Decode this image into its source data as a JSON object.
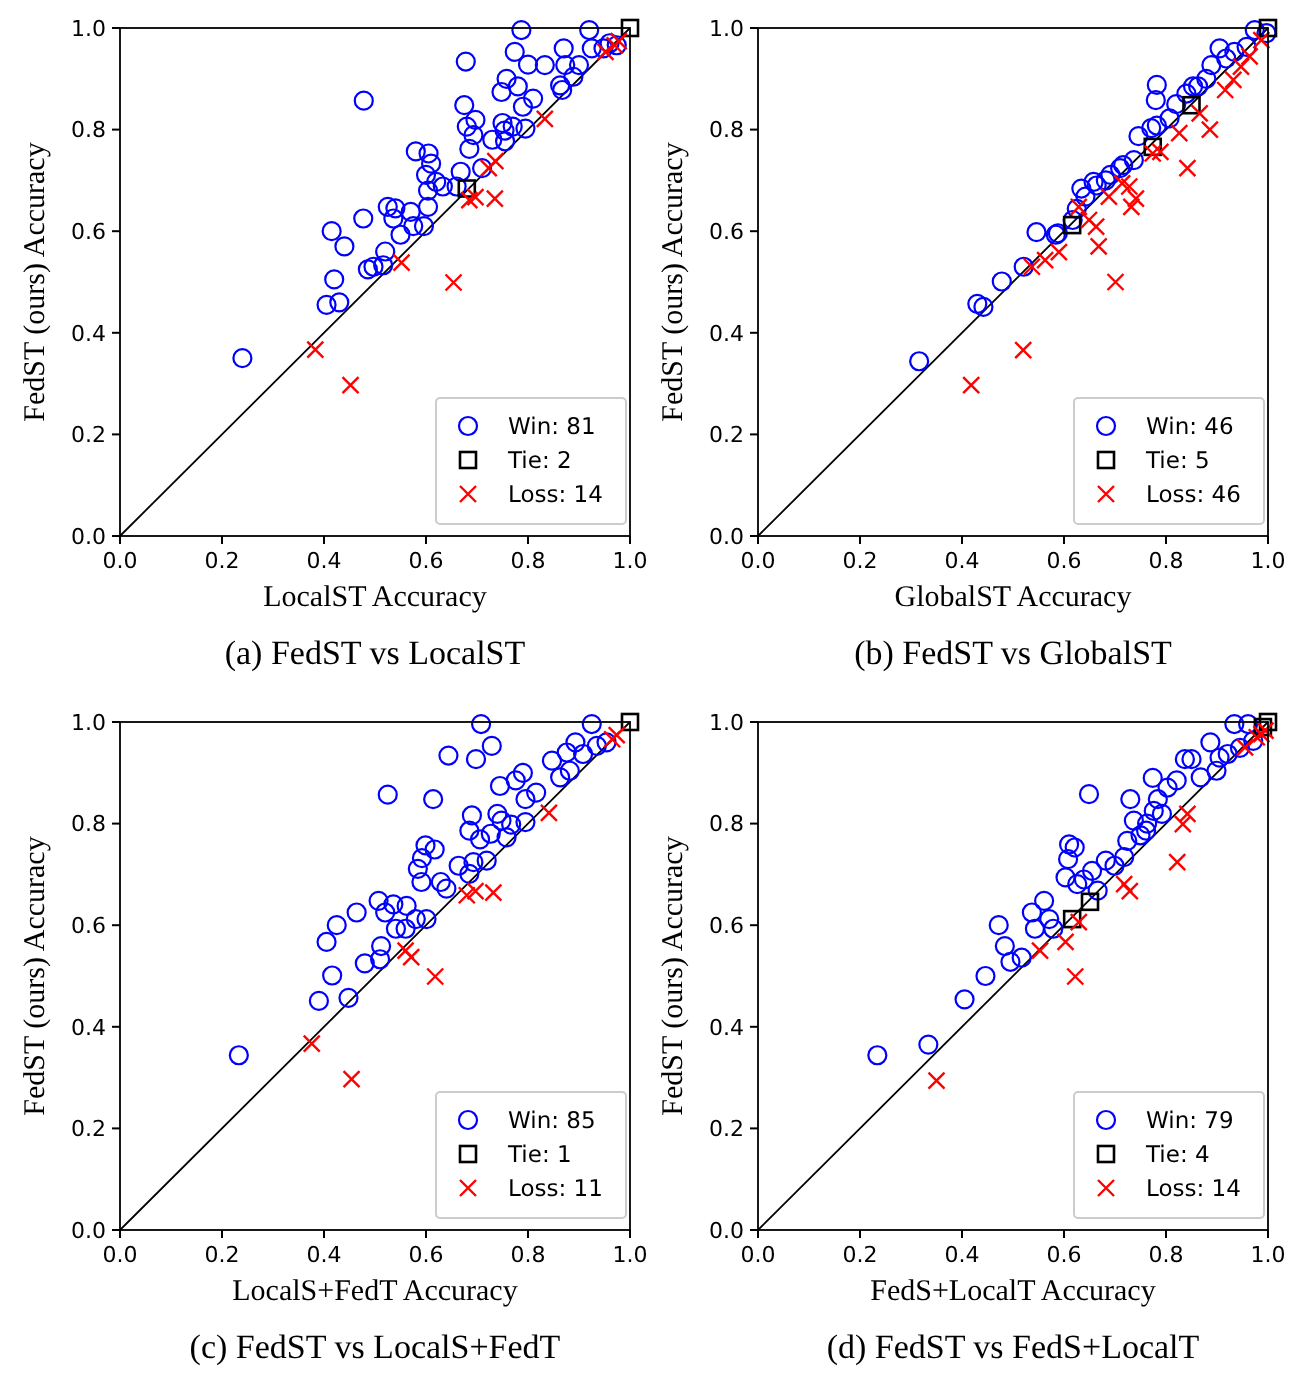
{
  "chart_data": [
    {
      "type": "scatter",
      "title": "(a) FedST vs LocalST",
      "xlabel": "LocalST Accuracy",
      "ylabel": "FedST (ours) Accuracy",
      "xlim": [
        0,
        1
      ],
      "ylim": [
        0,
        1
      ],
      "xticks": [
        {
          "value": 0,
          "label": "0.0"
        },
        {
          "value": 0.2,
          "label": "0.2"
        },
        {
          "value": 0.4,
          "label": "0.4"
        },
        {
          "value": 0.6,
          "label": "0.6"
        },
        {
          "value": 0.8,
          "label": "0.8"
        },
        {
          "value": 1,
          "label": "1.0"
        }
      ],
      "yticks": [
        {
          "value": 0,
          "label": "0.0"
        },
        {
          "value": 0.2,
          "label": "0.2"
        },
        {
          "value": 0.4,
          "label": "0.4"
        },
        {
          "value": 0.6,
          "label": "0.6"
        },
        {
          "value": 0.8,
          "label": "0.8"
        },
        {
          "value": 1,
          "label": "1.0"
        }
      ],
      "legend": "bottom right",
      "series": [
        {
          "type": "line",
          "color": "#000000",
          "marker": "none",
          "x": [
            0,
            1
          ],
          "values": [
            0,
            1
          ]
        },
        {
          "name": "Win: 81",
          "color": "#0000ff",
          "marker": "circle",
          "x": [
            0.24,
            0.405,
            0.43,
            0.42,
            0.44,
            0.415,
            0.477,
            0.478,
            0.486,
            0.497,
            0.52,
            0.516,
            0.55,
            0.536,
            0.525,
            0.54,
            0.57,
            0.575,
            0.596,
            0.604,
            0.58,
            0.605,
            0.61,
            0.6,
            0.62,
            0.604,
            0.633,
            0.66,
            0.668,
            0.685,
            0.68,
            0.697,
            0.675,
            0.678,
            0.693,
            0.71,
            0.73,
            0.75,
            0.755,
            0.774,
            0.787,
            0.8,
            0.833,
            0.78,
            0.79,
            0.81,
            0.795,
            0.748,
            0.758,
            0.87,
            0.873,
            0.863,
            0.867,
            0.889,
            0.9,
            0.92,
            0.925,
            0.948,
            0.96,
            0.974,
            0.754,
            0.77
          ],
          "values": [
            0.35,
            0.455,
            0.46,
            0.505,
            0.57,
            0.6,
            0.625,
            0.857,
            0.525,
            0.53,
            0.56,
            0.533,
            0.593,
            0.625,
            0.648,
            0.645,
            0.638,
            0.61,
            0.61,
            0.648,
            0.757,
            0.753,
            0.733,
            0.711,
            0.697,
            0.68,
            0.688,
            0.688,
            0.717,
            0.762,
            0.806,
            0.819,
            0.848,
            0.934,
            0.789,
            0.724,
            0.78,
            0.813,
            0.777,
            0.953,
            0.996,
            0.928,
            0.927,
            0.885,
            0.845,
            0.861,
            0.802,
            0.874,
            0.9,
            0.96,
            0.927,
            0.887,
            0.878,
            0.904,
            0.927,
            0.996,
            0.96,
            0.96,
            0.97,
            0.966,
            0.798,
            0.806
          ]
        },
        {
          "name": "Tie: 2",
          "color": "#000000",
          "marker": "square",
          "x": [
            0.68,
            1
          ],
          "values": [
            0.684,
            1
          ]
        },
        {
          "name": "Loss: 14",
          "color": "#ff0000",
          "marker": "cross",
          "x": [
            0.383,
            0.452,
            0.552,
            0.654,
            0.685,
            0.697,
            0.735,
            0.723,
            0.736,
            0.833,
            0.952,
            0.97,
            0.978
          ],
          "values": [
            0.367,
            0.297,
            0.538,
            0.499,
            0.661,
            0.667,
            0.664,
            0.724,
            0.738,
            0.821,
            0.953,
            0.966,
            0.974
          ]
        }
      ]
    },
    {
      "type": "scatter",
      "title": "(b) FedST vs GlobalST",
      "xlabel": "GlobalST Accuracy",
      "ylabel": "FedST (ours) Accuracy",
      "xlim": [
        0,
        1
      ],
      "ylim": [
        0,
        1
      ],
      "xticks": [
        {
          "value": 0,
          "label": "0.0"
        },
        {
          "value": 0.2,
          "label": "0.2"
        },
        {
          "value": 0.4,
          "label": "0.4"
        },
        {
          "value": 0.6,
          "label": "0.6"
        },
        {
          "value": 0.8,
          "label": "0.8"
        },
        {
          "value": 1,
          "label": "1.0"
        }
      ],
      "yticks": [
        {
          "value": 0,
          "label": "0.0"
        },
        {
          "value": 0.2,
          "label": "0.2"
        },
        {
          "value": 0.4,
          "label": "0.4"
        },
        {
          "value": 0.6,
          "label": "0.6"
        },
        {
          "value": 0.8,
          "label": "0.8"
        },
        {
          "value": 1,
          "label": "1.0"
        }
      ],
      "legend": "bottom right",
      "series": [
        {
          "type": "line",
          "color": "#000000",
          "marker": "none",
          "x": [
            0,
            1
          ],
          "values": [
            0,
            1
          ]
        },
        {
          "name": "Win: 46",
          "color": "#0000ff",
          "marker": "circle",
          "x": [
            0.316,
            0.43,
            0.442,
            0.478,
            0.546,
            0.584,
            0.588,
            0.521,
            0.617,
            0.625,
            0.634,
            0.658,
            0.664,
            0.691,
            0.71,
            0.716,
            0.737,
            0.746,
            0.771,
            0.782,
            0.78,
            0.782,
            0.82,
            0.84,
            0.853,
            0.879,
            0.889,
            0.905,
            0.918,
            0.934,
            0.958,
            0.974,
            0.997,
            0.807,
            0.863,
            0.682,
            0.642
          ],
          "values": [
            0.344,
            0.457,
            0.451,
            0.501,
            0.598,
            0.593,
            0.596,
            0.53,
            0.622,
            0.644,
            0.684,
            0.697,
            0.69,
            0.711,
            0.724,
            0.73,
            0.74,
            0.787,
            0.803,
            0.808,
            0.858,
            0.888,
            0.85,
            0.871,
            0.885,
            0.9,
            0.927,
            0.96,
            0.94,
            0.953,
            0.963,
            0.996,
            0.99,
            0.822,
            0.885,
            0.7,
            0.668
          ]
        },
        {
          "name": "Tie: 5",
          "color": "#000000",
          "marker": "square",
          "x": [
            0.616,
            0.774,
            0.85,
            1
          ],
          "values": [
            0.612,
            0.766,
            0.848,
            1
          ]
        },
        {
          "name": "Loss: 46",
          "color": "#ff0000",
          "marker": "cross",
          "x": [
            0.418,
            0.52,
            0.537,
            0.563,
            0.59,
            0.649,
            0.668,
            0.663,
            0.701,
            0.688,
            0.728,
            0.741,
            0.732,
            0.842,
            0.886,
            0.789,
            0.826,
            0.916,
            0.932,
            0.947,
            0.964,
            0.987,
            0.714,
            0.774,
            0.866,
            0.629
          ],
          "values": [
            0.297,
            0.366,
            0.53,
            0.543,
            0.559,
            0.622,
            0.57,
            0.609,
            0.5,
            0.668,
            0.688,
            0.664,
            0.648,
            0.724,
            0.8,
            0.756,
            0.793,
            0.878,
            0.898,
            0.924,
            0.944,
            0.976,
            0.694,
            0.753,
            0.832,
            0.648
          ]
        }
      ]
    },
    {
      "type": "scatter",
      "title": "(c) FedST vs LocalS+FedT",
      "xlabel": "LocalS+FedT Accuracy",
      "ylabel": "FedST (ours) Accuracy",
      "xlim": [
        0,
        1
      ],
      "ylim": [
        0,
        1
      ],
      "xticks": [
        {
          "value": 0,
          "label": "0.0"
        },
        {
          "value": 0.2,
          "label": "0.2"
        },
        {
          "value": 0.4,
          "label": "0.4"
        },
        {
          "value": 0.6,
          "label": "0.6"
        },
        {
          "value": 0.8,
          "label": "0.8"
        },
        {
          "value": 1,
          "label": "1.0"
        }
      ],
      "yticks": [
        {
          "value": 0,
          "label": "0.0"
        },
        {
          "value": 0.2,
          "label": "0.2"
        },
        {
          "value": 0.4,
          "label": "0.4"
        },
        {
          "value": 0.6,
          "label": "0.6"
        },
        {
          "value": 0.8,
          "label": "0.8"
        },
        {
          "value": 1,
          "label": "1.0"
        }
      ],
      "legend": "bottom right",
      "series": [
        {
          "type": "line",
          "color": "#000000",
          "marker": "none",
          "x": [
            0,
            1
          ],
          "values": [
            0,
            1
          ]
        },
        {
          "name": "Win: 85",
          "color": "#0000ff",
          "marker": "circle",
          "x": [
            0.233,
            0.39,
            0.448,
            0.416,
            0.405,
            0.425,
            0.464,
            0.525,
            0.48,
            0.51,
            0.512,
            0.507,
            0.52,
            0.536,
            0.562,
            0.541,
            0.58,
            0.601,
            0.56,
            0.591,
            0.584,
            0.592,
            0.599,
            0.617,
            0.614,
            0.644,
            0.698,
            0.729,
            0.708,
            0.629,
            0.64,
            0.664,
            0.685,
            0.693,
            0.719,
            0.69,
            0.685,
            0.706,
            0.727,
            0.74,
            0.748,
            0.758,
            0.767,
            0.795,
            0.745,
            0.776,
            0.79,
            0.795,
            0.816,
            0.847,
            0.876,
            0.893,
            0.863,
            0.882,
            0.925,
            0.935,
            0.908,
            0.954
          ],
          "values": [
            0.344,
            0.451,
            0.457,
            0.501,
            0.567,
            0.6,
            0.625,
            0.857,
            0.525,
            0.533,
            0.559,
            0.648,
            0.625,
            0.641,
            0.638,
            0.593,
            0.612,
            0.612,
            0.593,
            0.685,
            0.711,
            0.732,
            0.757,
            0.749,
            0.848,
            0.934,
            0.927,
            0.953,
            0.996,
            0.685,
            0.672,
            0.717,
            0.701,
            0.724,
            0.727,
            0.816,
            0.786,
            0.769,
            0.78,
            0.819,
            0.806,
            0.773,
            0.798,
            0.803,
            0.874,
            0.885,
            0.9,
            0.848,
            0.861,
            0.924,
            0.94,
            0.96,
            0.891,
            0.904,
            0.996,
            0.953,
            0.937,
            0.96
          ]
        },
        {
          "name": "Tie: 1",
          "color": "#000000",
          "marker": "square",
          "x": [
            1
          ],
          "values": [
            1
          ]
        },
        {
          "name": "Loss: 11",
          "color": "#ff0000",
          "marker": "cross",
          "x": [
            0.376,
            0.454,
            0.56,
            0.571,
            0.618,
            0.68,
            0.697,
            0.732,
            0.841,
            0.965,
            0.974
          ],
          "values": [
            0.367,
            0.297,
            0.55,
            0.537,
            0.499,
            0.659,
            0.667,
            0.664,
            0.821,
            0.966,
            0.974
          ]
        }
      ]
    },
    {
      "type": "scatter",
      "title": "(d) FedST vs FedS+LocalT",
      "xlabel": "FedS+LocalT Accuracy",
      "ylabel": "FedST (ours) Accuracy",
      "xlim": [
        0,
        1
      ],
      "ylim": [
        0,
        1
      ],
      "xticks": [
        {
          "value": 0,
          "label": "0.0"
        },
        {
          "value": 0.2,
          "label": "0.2"
        },
        {
          "value": 0.4,
          "label": "0.4"
        },
        {
          "value": 0.6,
          "label": "0.6"
        },
        {
          "value": 0.8,
          "label": "0.8"
        },
        {
          "value": 1,
          "label": "1.0"
        }
      ],
      "yticks": [
        {
          "value": 0,
          "label": "0.0"
        },
        {
          "value": 0.2,
          "label": "0.2"
        },
        {
          "value": 0.4,
          "label": "0.4"
        },
        {
          "value": 0.6,
          "label": "0.6"
        },
        {
          "value": 0.8,
          "label": "0.8"
        },
        {
          "value": 1,
          "label": "1.0"
        }
      ],
      "legend": "bottom right",
      "series": [
        {
          "type": "line",
          "color": "#000000",
          "marker": "none",
          "x": [
            0,
            1
          ],
          "values": [
            0,
            1
          ]
        },
        {
          "name": "Win: 79",
          "color": "#0000ff",
          "marker": "circle",
          "x": [
            0.234,
            0.334,
            0.405,
            0.446,
            0.472,
            0.484,
            0.495,
            0.517,
            0.537,
            0.543,
            0.561,
            0.571,
            0.579,
            0.603,
            0.608,
            0.61,
            0.621,
            0.626,
            0.639,
            0.649,
            0.655,
            0.666,
            0.682,
            0.699,
            0.718,
            0.724,
            0.73,
            0.737,
            0.75,
            0.763,
            0.774,
            0.784,
            0.792,
            0.803,
            0.821,
            0.837,
            0.85,
            0.868,
            0.887,
            0.899,
            0.905,
            0.921,
            0.934,
            0.961,
            0.945,
            0.971,
            0.761,
            0.776
          ],
          "values": [
            0.344,
            0.365,
            0.454,
            0.5,
            0.6,
            0.559,
            0.528,
            0.536,
            0.625,
            0.593,
            0.648,
            0.612,
            0.593,
            0.694,
            0.73,
            0.759,
            0.753,
            0.681,
            0.69,
            0.858,
            0.707,
            0.668,
            0.727,
            0.717,
            0.734,
            0.766,
            0.848,
            0.806,
            0.777,
            0.8,
            0.89,
            0.848,
            0.819,
            0.871,
            0.885,
            0.927,
            0.927,
            0.891,
            0.96,
            0.904,
            0.93,
            0.937,
            0.996,
            0.996,
            0.949,
            0.963,
            0.786,
            0.825
          ]
        },
        {
          "name": "Tie: 4",
          "color": "#000000",
          "marker": "square",
          "x": [
            0.616,
            0.651,
            0.99,
            1
          ],
          "values": [
            0.612,
            0.646,
            0.99,
            1
          ]
        },
        {
          "name": "Loss: 14",
          "color": "#ff0000",
          "marker": "cross",
          "x": [
            0.35,
            0.553,
            0.603,
            0.622,
            0.629,
            0.718,
            0.729,
            0.822,
            0.833,
            0.842,
            0.955,
            0.978,
            0.987,
            0.995
          ],
          "values": [
            0.294,
            0.55,
            0.567,
            0.499,
            0.606,
            0.681,
            0.667,
            0.724,
            0.799,
            0.819,
            0.95,
            0.97,
            0.976,
            0.983
          ]
        }
      ]
    }
  ]
}
